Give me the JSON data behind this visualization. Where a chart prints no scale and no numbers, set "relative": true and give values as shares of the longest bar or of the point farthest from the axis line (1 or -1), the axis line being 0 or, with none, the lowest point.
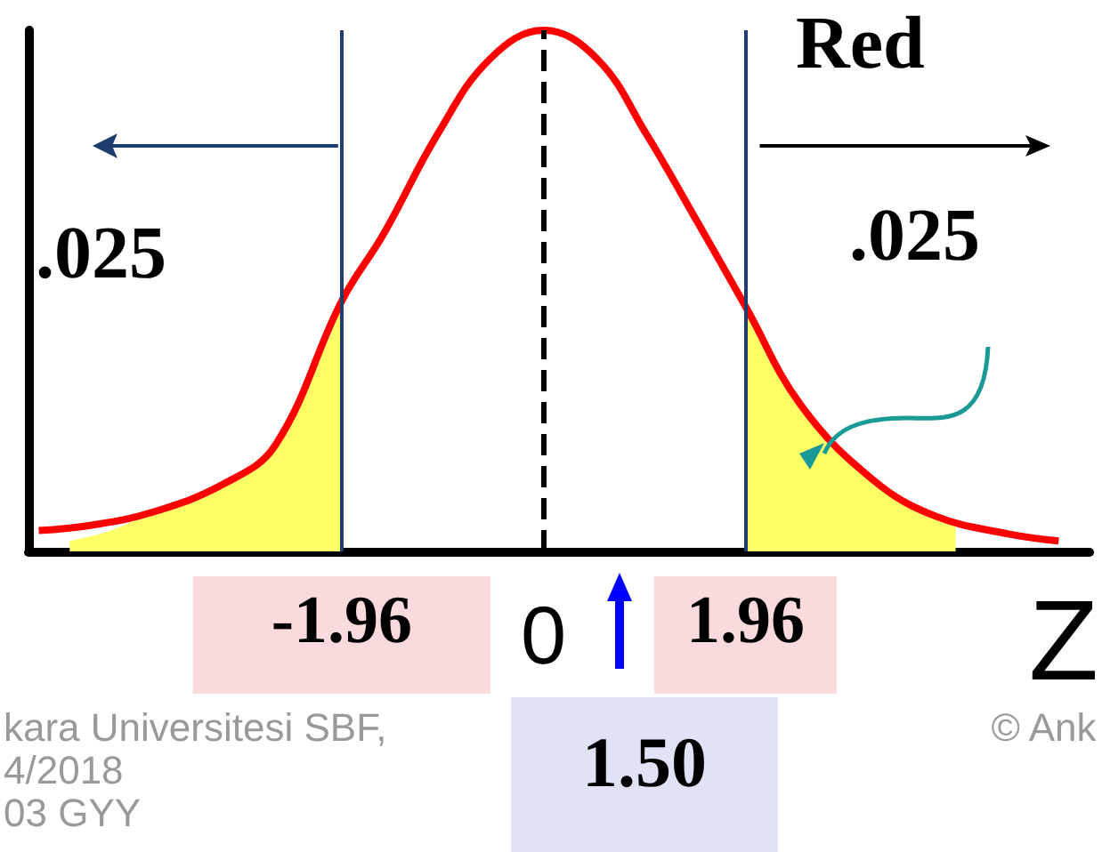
{
  "chart_data": {
    "type": "line",
    "relative": true,
    "xlabel": "Z",
    "marker": "none",
    "xlim": [
      -5.0,
      5.3
    ],
    "xticks": [
      -1.96,
      0,
      1.96
    ],
    "series": [
      {
        "type": "area",
        "color": "#ffff66",
        "x": [
          -4.6,
          -4.2,
          -3.8,
          -3.1,
          -2.6,
          -1.96
        ],
        "values": [
          0.02,
          0.04,
          0.075,
          0.13,
          0.205,
          0.47
        ]
      },
      {
        "type": "area",
        "color": "#ffff66",
        "x": [
          1.96,
          2.5,
          3.2,
          3.8,
          4.0
        ],
        "values": [
          0.47,
          0.28,
          0.13,
          0.07,
          0.06
        ]
      },
      {
        "type": "line",
        "color": "#ff0000",
        "x": [
          -4.9,
          -4.4,
          -3.8,
          -3.1,
          -2.6,
          -1.96,
          -1.55,
          -1.03,
          -0.52,
          0,
          0.52,
          1.0,
          1.5,
          1.96,
          2.5,
          3.2,
          3.8,
          4.5,
          5.0
        ],
        "values": [
          0.04,
          0.05,
          0.075,
          0.13,
          0.205,
          0.48,
          0.61,
          0.8,
          0.945,
          1,
          0.945,
          0.8,
          0.63,
          0.47,
          0.28,
          0.137,
          0.068,
          0.034,
          0.02
        ]
      }
    ],
    "ref_lines": [
      {
        "axis": "x",
        "value": -1.96,
        "color": "#1f3c6e"
      },
      {
        "axis": "x",
        "value": 1.96,
        "color": "#1f3c6e"
      },
      {
        "axis": "x",
        "value": 0,
        "color": "#000000",
        "line_style": "dashed"
      }
    ],
    "annotations": [
      ".025",
      ".025",
      "Red",
      "1.50",
      "kara Universitesi SBF,",
      "4/2018",
      "03 GYY",
      "© Ank"
    ]
  }
}
